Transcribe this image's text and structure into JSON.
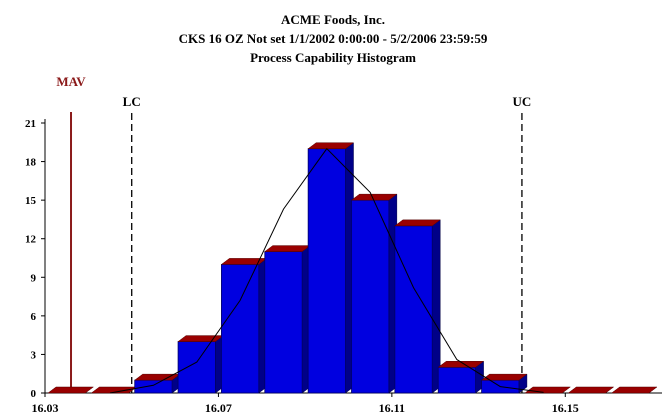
{
  "chart_data": {
    "type": "bar",
    "title": "ACME Foods, Inc.",
    "subtitle": "CKS 16 OZ   Not set   1/1/2002 0:00:00 - 5/2/2006 23:59:59",
    "subtitle2": "Process Capability Histogram",
    "xlabel": "",
    "ylabel": "",
    "x_ticks": [
      "16.03",
      "16.07",
      "16.11",
      "16.15"
    ],
    "x_tick_values": [
      16.03,
      16.07,
      16.11,
      16.15
    ],
    "y_ticks": [
      "0",
      "3",
      "6",
      "9",
      "12",
      "15",
      "18",
      "21"
    ],
    "ylim": [
      0,
      21
    ],
    "xlim": [
      16.03,
      16.17
    ],
    "bin_width": 0.01,
    "bins": [
      {
        "start": 16.03,
        "value": 0
      },
      {
        "start": 16.04,
        "value": 0
      },
      {
        "start": 16.05,
        "value": 1
      },
      {
        "start": 16.06,
        "value": 4
      },
      {
        "start": 16.07,
        "value": 10
      },
      {
        "start": 16.08,
        "value": 11
      },
      {
        "start": 16.09,
        "value": 19
      },
      {
        "start": 16.1,
        "value": 15
      },
      {
        "start": 16.11,
        "value": 13
      },
      {
        "start": 16.12,
        "value": 2
      },
      {
        "start": 16.13,
        "value": 1
      },
      {
        "start": 16.14,
        "value": 0
      },
      {
        "start": 16.15,
        "value": 0
      },
      {
        "start": 16.16,
        "value": 0
      }
    ],
    "curve_points": [
      [
        16.045,
        0
      ],
      [
        16.055,
        0.6
      ],
      [
        16.065,
        2.4
      ],
      [
        16.075,
        7.2
      ],
      [
        16.085,
        14.3
      ],
      [
        16.095,
        19
      ],
      [
        16.105,
        15.6
      ],
      [
        16.115,
        8.2
      ],
      [
        16.125,
        2.6
      ],
      [
        16.135,
        0.5
      ],
      [
        16.145,
        0.05
      ]
    ],
    "limits": [
      {
        "label": "MAV",
        "x": 16.036,
        "style": "solid",
        "color": "#8b1a1a"
      },
      {
        "label": "LC",
        "x": 16.05,
        "style": "dashed",
        "color": "#000000"
      },
      {
        "label": "UC",
        "x": 16.14,
        "style": "dashed",
        "color": "#000000"
      }
    ],
    "bar_color": "#0000e0",
    "bar_top_color": "#990000",
    "grid": false,
    "legend": "none"
  }
}
